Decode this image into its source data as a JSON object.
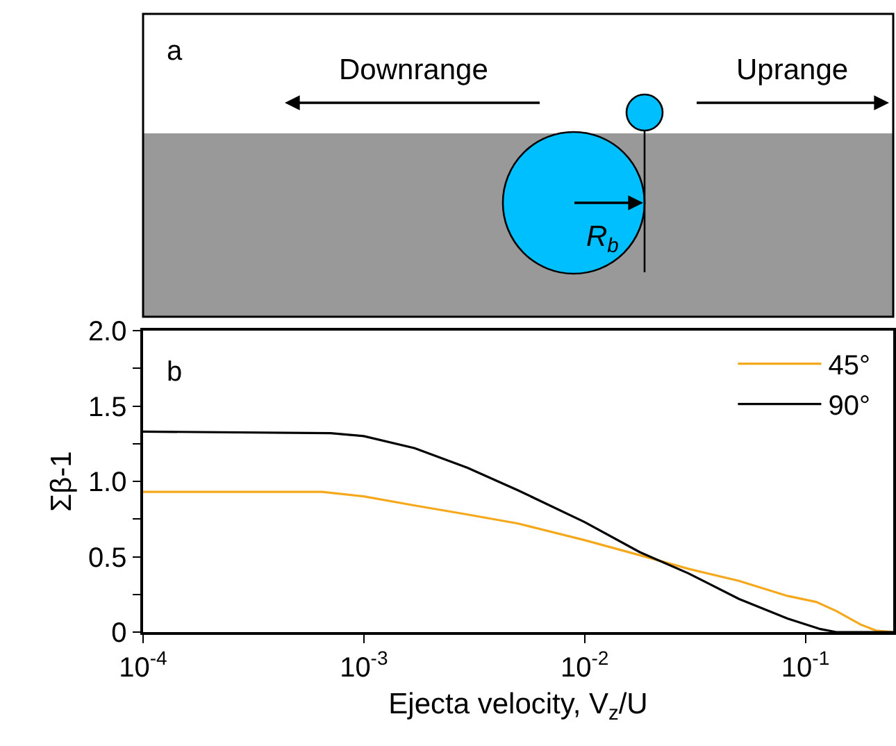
{
  "chart_data": {
    "type": "line",
    "xlabel": "Ejecta velocity, V$_{z}$/U",
    "ylabel": "Σβ-1",
    "log": "x",
    "xlim": [
      0.0001,
      0.25
    ],
    "xticks": [
      {
        "value": 0.0001,
        "label": "10$^{-4}$"
      },
      {
        "value": 0.001,
        "label": "10$^{-3}$"
      },
      {
        "value": 0.01,
        "label": "10$^{-2}$"
      },
      {
        "value": 0.1,
        "label": "10$^{-1}$"
      }
    ],
    "ylim": [
      0,
      2.0
    ],
    "yticks": [
      0,
      {
        "value": 0.25,
        "label": null
      },
      {
        "value": 0.5,
        "label": "0.5"
      },
      {
        "value": 0.75,
        "label": null
      },
      {
        "value": 1.0,
        "label": "1.0"
      },
      {
        "value": 1.25,
        "label": null
      },
      {
        "value": 1.5,
        "label": "1.5"
      },
      {
        "value": 1.75,
        "label": null
      },
      {
        "value": 2.0,
        "label": "2.0"
      }
    ],
    "legend": "top right",
    "marker": "none",
    "line_style": "solid",
    "series": [
      {
        "name": "45°",
        "color": "#f5a81c",
        "x": [
          0.0001,
          0.000646,
          0.001,
          0.0017,
          0.00295,
          0.005,
          0.01,
          0.0178,
          0.0295,
          0.05,
          0.083,
          0.112,
          0.138,
          0.178,
          0.209,
          0.25
        ],
        "values": [
          0.93,
          0.93,
          0.9,
          0.84,
          0.78,
          0.72,
          0.61,
          0.51,
          0.42,
          0.34,
          0.24,
          0.2,
          0.14,
          0.05,
          0.01,
          0
        ]
      },
      {
        "name": "90°",
        "color": "#000000",
        "x": [
          0.0001,
          0.000708,
          0.001,
          0.0017,
          0.00295,
          0.005,
          0.01,
          0.0178,
          0.0295,
          0.05,
          0.083,
          0.117,
          0.138,
          0.25
        ],
        "values": [
          1.33,
          1.32,
          1.3,
          1.22,
          1.09,
          0.94,
          0.73,
          0.53,
          0.39,
          0.22,
          0.09,
          0.02,
          0,
          0
        ]
      }
    ],
    "annotations": [
      "a",
      "Downrange",
      "Uprange",
      "R$_{b}$",
      "b"
    ]
  }
}
